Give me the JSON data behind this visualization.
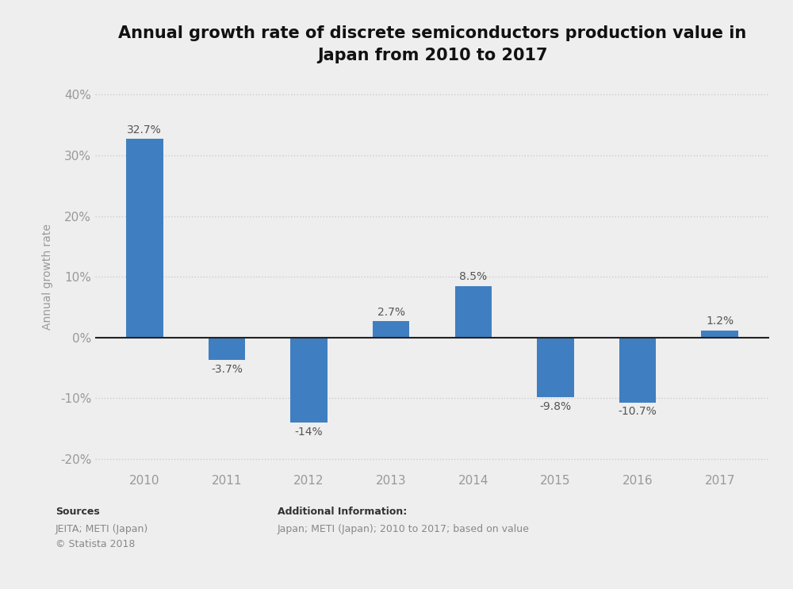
{
  "title": "Annual growth rate of discrete semiconductors production value in\nJapan from 2010 to 2017",
  "years": [
    "2010",
    "2011",
    "2012",
    "2013",
    "2014",
    "2015",
    "2016",
    "2017"
  ],
  "values": [
    32.7,
    -3.7,
    -14.0,
    2.7,
    8.5,
    -9.8,
    -10.7,
    1.2
  ],
  "labels": [
    "32.7%",
    "-3.7%",
    "-14%",
    "2.7%",
    "8.5%",
    "-9.8%",
    "-10.7%",
    "1.2%"
  ],
  "bar_color": "#3f7fc1",
  "background_color": "#eeeeee",
  "plot_background": "#eeeeee",
  "ylabel": "Annual growth rate",
  "ylim_min": -22,
  "ylim_max": 42,
  "yticks": [
    -20,
    -10,
    0,
    10,
    20,
    30,
    40
  ],
  "ytick_labels": [
    "-20%",
    "-10%",
    "0%",
    "10%",
    "20%",
    "30%",
    "40%"
  ],
  "title_fontsize": 15,
  "label_fontsize": 10,
  "tick_fontsize": 11,
  "ylabel_fontsize": 10,
  "sources_line1": "Sources",
  "sources_line2": "JEITA; METI (Japan)\n© Statista 2018",
  "additional_line1": "Additional Information:",
  "additional_line2": "Japan; METI (Japan); 2010 to 2017; based on value",
  "grid_color": "#cccccc",
  "zero_line_color": "#222222",
  "tick_color": "#999999",
  "label_color": "#555555"
}
